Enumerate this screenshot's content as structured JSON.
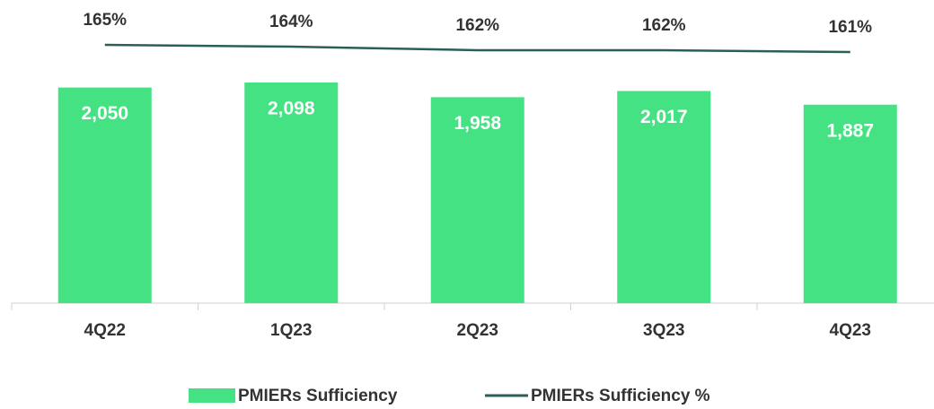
{
  "chart_data": {
    "type": "bar",
    "categories": [
      "4Q22",
      "1Q23",
      "2Q23",
      "3Q23",
      "4Q23"
    ],
    "ylim": [
      0,
      2200
    ],
    "y2lim": [
      155,
      175
    ],
    "series": [
      {
        "name": "PMIERs Sufficiency",
        "type": "bar",
        "color": "#45e283",
        "values": [
          2050,
          2098,
          1958,
          2017,
          1887
        ],
        "value_labels": [
          "2,050",
          "2,098",
          "1,958",
          "2,017",
          "1,887"
        ]
      },
      {
        "name": "PMIERs Sufficiency %",
        "type": "line",
        "axis": "y2",
        "color": "#2a5f57",
        "values": [
          165,
          164,
          162,
          162,
          161
        ],
        "value_labels": [
          "165%",
          "164%",
          "162%",
          "162%",
          "161%"
        ]
      }
    ]
  }
}
